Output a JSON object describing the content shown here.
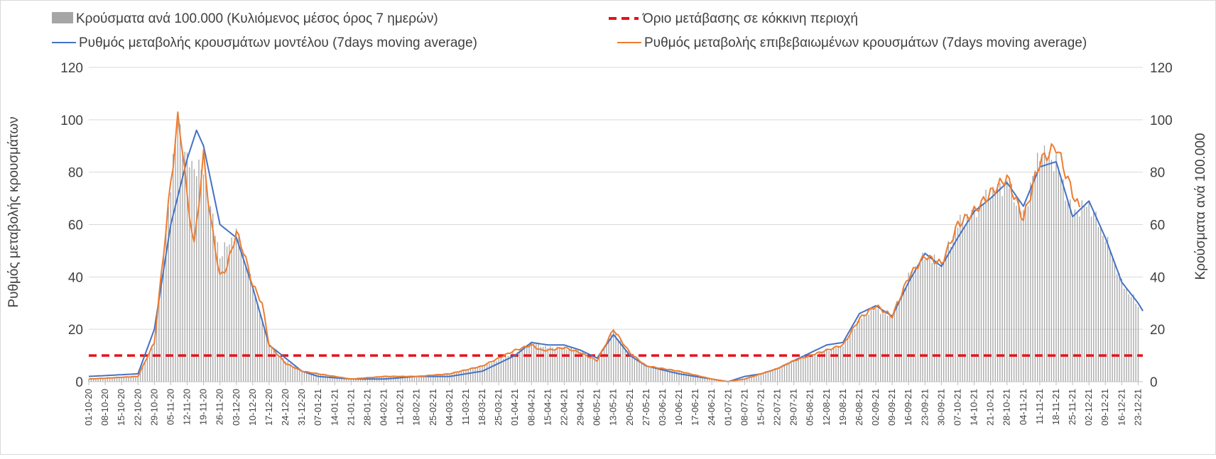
{
  "chart_data": {
    "type": "bar+line",
    "legend": [
      {
        "label": "Κρούσματα ανά 100.000 (Κυλιόμενος μέσος όρος 7 ημερών)",
        "color": "#a6a6a6",
        "kind": "bar"
      },
      {
        "label": "Όριο μετάβασης σε κόκκινη περιοχή",
        "color": "#e8101a",
        "kind": "dashed-line"
      },
      {
        "label": "Ρυθμός μεταβολής κρουσμάτων μοντέλου (7days moving average)",
        "color": "#4472c4",
        "kind": "line"
      },
      {
        "label": "Ρυθμός μεταβολής επιβεβαιωμένων κρουσμάτων (7days moving average)",
        "color": "#ed7d31",
        "kind": "line"
      }
    ],
    "legend_placement": "top",
    "ylabel_left": "Ρυθμός μεταβολής κρουσμάτων",
    "ylabel_right": "Κρούσματα ανά 100.000",
    "ylim_left": [
      0,
      120
    ],
    "ylim_right": [
      0,
      120
    ],
    "yticks": [
      "0",
      "20",
      "40",
      "60",
      "80",
      "100",
      "120"
    ],
    "grid": true,
    "x_start": "2020-10-01",
    "x_end": "2021-12-25",
    "x_tick_labels": [
      "01-10-20",
      "08-10-20",
      "15-10-20",
      "22-10-20",
      "29-10-20",
      "05-11-20",
      "12-11-20",
      "19-11-20",
      "26-11-20",
      "03-12-20",
      "10-12-20",
      "17-12-20",
      "24-12-20",
      "31-12-20",
      "07-01-21",
      "14-01-21",
      "21-01-21",
      "28-01-21",
      "04-02-21",
      "11-02-21",
      "18-02-21",
      "25-02-21",
      "04-03-21",
      "11-03-21",
      "18-03-21",
      "25-03-21",
      "01-04-21",
      "08-04-21",
      "15-04-21",
      "22-04-21",
      "29-04-21",
      "06-05-21",
      "13-05-21",
      "20-05-21",
      "27-05-21",
      "03-06-21",
      "10-06-21",
      "17-06-21",
      "24-06-21",
      "01-07-21",
      "08-07-21",
      "15-07-21",
      "22-07-21",
      "29-07-21",
      "05-08-21",
      "12-08-21",
      "19-08-21",
      "26-08-21",
      "02-09-21",
      "09-09-21",
      "16-09-21",
      "23-09-21",
      "30-09-21",
      "07-10-21",
      "14-10-21",
      "21-10-21",
      "28-10-21",
      "04-11-21",
      "11-11-21",
      "18-11-21",
      "25-11-21",
      "02-12-21",
      "09-12-21",
      "16-12-21",
      "23-12-21"
    ],
    "threshold": 10,
    "series": [
      {
        "name": "Ρυθμός μεταβολής κρουσμάτων μοντέλου (7days moving average)",
        "color": "#4472c4",
        "x": [
          "01-10-20",
          "22-10-20",
          "29-10-20",
          "05-11-20",
          "12-11-20",
          "16-11-20",
          "19-11-20",
          "26-11-20",
          "03-12-20",
          "10-12-20",
          "17-12-20",
          "24-12-20",
          "31-12-20",
          "07-01-21",
          "21-01-21",
          "04-02-21",
          "18-02-21",
          "04-03-21",
          "18-03-21",
          "01-04-21",
          "08-04-21",
          "15-04-21",
          "22-04-21",
          "29-04-21",
          "06-05-21",
          "13-05-21",
          "20-05-21",
          "27-05-21",
          "10-06-21",
          "24-06-21",
          "01-07-21",
          "08-07-21",
          "15-07-21",
          "22-07-21",
          "29-07-21",
          "05-08-21",
          "12-08-21",
          "19-08-21",
          "26-08-21",
          "02-09-21",
          "09-09-21",
          "16-09-21",
          "23-09-21",
          "30-09-21",
          "07-10-21",
          "14-10-21",
          "21-10-21",
          "28-10-21",
          "04-11-21",
          "11-11-21",
          "18-11-21",
          "25-11-21",
          "02-12-21",
          "09-12-21",
          "16-12-21",
          "23-12-21",
          "25-12-21"
        ],
        "y": [
          2,
          3,
          20,
          60,
          85,
          96,
          90,
          60,
          55,
          36,
          14,
          9,
          4,
          2,
          1,
          1,
          2,
          2,
          4,
          10,
          15,
          14,
          14,
          12,
          9,
          18,
          10,
          6,
          3,
          1,
          0,
          2,
          3,
          5,
          8,
          11,
          14,
          15,
          26,
          29,
          25,
          38,
          49,
          44,
          55,
          65,
          70,
          76,
          67,
          82,
          84,
          63,
          69,
          55,
          38,
          30,
          27
        ]
      },
      {
        "name": "Ρυθμός μεταβολής επιβεβαιωμένων κρουσμάτων (7days moving average)",
        "color": "#ed7d31",
        "x": [
          "01-10-20",
          "22-10-20",
          "29-10-20",
          "05-11-20",
          "08-11-20",
          "10-11-20",
          "12-11-20",
          "15-11-20",
          "19-11-20",
          "22-11-20",
          "26-11-20",
          "29-11-20",
          "03-12-20",
          "06-12-20",
          "10-12-20",
          "14-12-20",
          "17-12-20",
          "24-12-20",
          "31-12-20",
          "07-01-21",
          "21-01-21",
          "04-02-21",
          "18-02-21",
          "04-03-21",
          "18-03-21",
          "01-04-21",
          "08-04-21",
          "12-04-21",
          "15-04-21",
          "22-04-21",
          "29-04-21",
          "06-05-21",
          "13-05-21",
          "20-05-21",
          "27-05-21",
          "10-06-21",
          "24-06-21",
          "01-07-21",
          "08-07-21",
          "15-07-21",
          "22-07-21",
          "29-07-21",
          "05-08-21",
          "12-08-21",
          "19-08-21",
          "26-08-21",
          "02-09-21",
          "09-09-21",
          "16-09-21",
          "23-09-21",
          "30-09-21",
          "07-10-21",
          "14-10-21",
          "21-10-21",
          "28-10-21",
          "04-11-21",
          "11-11-21",
          "18-11-21",
          "25-11-21",
          "28-11-21"
        ],
        "y": [
          1,
          2,
          15,
          76,
          100,
          90,
          70,
          52,
          86,
          62,
          40,
          44,
          57,
          50,
          37,
          30,
          14,
          7,
          4,
          3,
          1,
          2,
          2,
          3,
          6,
          12,
          14,
          12,
          12,
          13,
          11,
          8,
          20,
          11,
          6,
          4,
          1,
          0,
          1,
          3,
          5,
          8,
          10,
          12,
          14,
          24,
          29,
          25,
          40,
          48,
          45,
          60,
          65,
          72,
          78,
          62,
          84,
          90,
          72,
          66
        ]
      }
    ],
    "bars": {
      "name": "Κρούσματα ανά 100.000 (Κυλιόμενος μέσος όρος 7 ημερών)",
      "color": "#a6a6a6",
      "x": [
        "01-10-20",
        "22-10-20",
        "29-10-20",
        "05-11-20",
        "08-11-20",
        "12-11-20",
        "19-11-20",
        "26-11-20",
        "03-12-20",
        "10-12-20",
        "17-12-20",
        "24-12-20",
        "31-12-20",
        "07-01-21",
        "21-01-21",
        "04-02-21",
        "18-02-21",
        "04-03-21",
        "18-03-21",
        "01-04-21",
        "08-04-21",
        "15-04-21",
        "22-04-21",
        "29-04-21",
        "06-05-21",
        "13-05-21",
        "20-05-21",
        "27-05-21",
        "10-06-21",
        "24-06-21",
        "01-07-21",
        "08-07-21",
        "15-07-21",
        "22-07-21",
        "29-07-21",
        "05-08-21",
        "12-08-21",
        "19-08-21",
        "26-08-21",
        "02-09-21",
        "09-09-21",
        "16-09-21",
        "23-09-21",
        "30-09-21",
        "07-10-21",
        "14-10-21",
        "21-10-21",
        "28-10-21",
        "04-11-21",
        "11-11-21",
        "18-11-21",
        "25-11-21",
        "02-12-21",
        "09-12-21",
        "16-12-21",
        "23-12-21"
      ],
      "y": [
        1,
        2,
        15,
        76,
        100,
        84,
        80,
        48,
        57,
        36,
        14,
        8,
        4,
        3,
        1,
        2,
        2,
        3,
        6,
        11,
        15,
        13,
        13,
        12,
        8,
        20,
        10,
        6,
        4,
        1,
        0,
        1,
        3,
        5,
        8,
        10,
        12,
        14,
        24,
        28,
        25,
        40,
        48,
        45,
        60,
        65,
        72,
        76,
        64,
        88,
        84,
        64,
        68,
        55,
        38,
        29
      ]
    },
    "threshold_line": {
      "label": "Όριο μετάβασης σε κόκκινη περιοχή",
      "value": 10,
      "color": "#e8101a"
    }
  }
}
